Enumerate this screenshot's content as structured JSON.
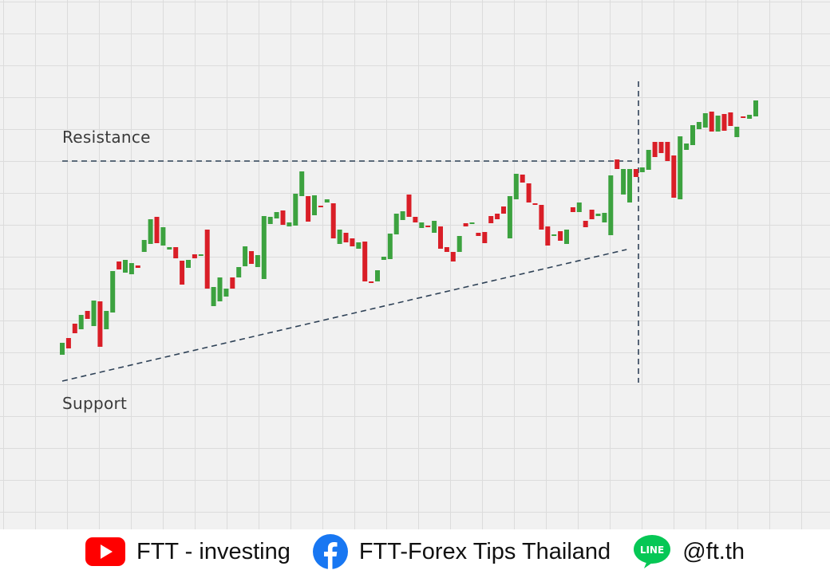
{
  "chart_data": {
    "type": "candlestick",
    "title": "",
    "xlabel": "",
    "ylabel": "",
    "grid": true,
    "annotations": [
      {
        "text": "Resistance",
        "kind": "horizontal-dashed-line",
        "level": 202
      },
      {
        "text": "Support",
        "kind": "rising-dashed-trendline",
        "from": [
          0,
          478
        ],
        "to": [
          88,
          313
        ]
      },
      {
        "text": "",
        "kind": "vertical-dashed-line",
        "at_index": 90
      }
    ],
    "axes_range": {
      "x": [
        0,
        111
      ],
      "y_screen_ref": [
        100,
        480
      ]
    },
    "candles": [
      [
        445,
        430,
        455,
        425
      ],
      [
        424,
        437,
        445,
        418
      ],
      [
        406,
        418,
        421,
        397
      ],
      [
        413,
        395,
        421,
        380
      ],
      [
        390,
        400,
        411,
        382
      ],
      [
        409,
        377,
        412,
        362
      ],
      [
        378,
        435,
        446,
        365
      ],
      [
        413,
        390,
        419,
        376
      ],
      [
        392,
        340,
        396,
        335
      ],
      [
        328,
        338,
        343,
        318
      ],
      [
        342,
        326,
        350,
        320
      ],
      [
        344,
        330,
        348,
        323
      ],
      [
        333,
        336,
        344,
        326
      ],
      [
        316,
        301,
        331,
        300
      ],
      [
        306,
        275,
        313,
        262
      ],
      [
        272,
        305,
        312,
        254
      ],
      [
        308,
        285,
        344,
        269
      ],
      [
        313,
        310,
        324,
        306
      ],
      [
        310,
        324,
        339,
        301
      ],
      [
        327,
        357,
        360,
        326
      ],
      [
        336,
        326,
        342,
        323
      ],
      [
        319,
        324,
        327,
        313
      ],
      [
        321,
        319,
        324,
        306
      ],
      [
        288,
        362,
        371,
        282
      ],
      [
        384,
        360,
        390,
        361
      ],
      [
        378,
        348,
        386,
        330
      ],
      [
        372,
        362,
        378,
        342
      ],
      [
        348,
        362,
        369,
        342
      ],
      [
        348,
        335,
        359,
        322
      ],
      [
        334,
        309,
        343,
        304
      ],
      [
        315,
        331,
        336,
        310
      ],
      [
        335,
        320,
        337,
        296
      ],
      [
        350,
        271,
        356,
        262
      ],
      [
        281,
        272,
        287,
        262
      ],
      [
        274,
        266,
        279,
        260
      ],
      [
        264,
        282,
        289,
        260
      ],
      [
        284,
        279,
        289,
        252
      ],
      [
        283,
        243,
        293,
        238
      ],
      [
        246,
        215,
        253,
        209
      ],
      [
        246,
        278,
        280,
        233
      ],
      [
        270,
        245,
        273,
        243
      ],
      [
        258,
        258,
        267,
        251
      ],
      [
        254,
        250,
        259,
        249
      ],
      [
        255,
        299,
        309,
        245
      ],
      [
        306,
        288,
        314,
        286
      ],
      [
        292,
        304,
        311,
        286
      ],
      [
        299,
        309,
        316,
        291
      ],
      [
        312,
        304,
        323,
        301
      ],
      [
        303,
        353,
        364,
        293
      ],
      [
        353,
        354,
        356,
        337
      ],
      [
        353,
        339,
        354,
        344
      ],
      [
        326,
        322,
        339,
        309
      ],
      [
        325,
        293,
        332,
        283
      ],
      [
        294,
        268,
        302,
        266
      ],
      [
        276,
        265,
        280,
        260
      ],
      [
        244,
        272,
        272,
        233
      ],
      [
        272,
        279,
        282,
        267
      ],
      [
        286,
        279,
        292,
        276
      ],
      [
        283,
        285,
        297,
        272
      ],
      [
        292,
        277,
        298,
        272
      ],
      [
        284,
        312,
        315,
        276
      ],
      [
        310,
        316,
        324,
        282
      ],
      [
        316,
        328,
        333,
        280
      ],
      [
        316,
        296,
        324,
        284
      ],
      [
        280,
        284,
        303,
        276
      ],
      [
        280,
        279,
        293,
        269
      ],
      [
        292,
        296,
        309,
        264
      ],
      [
        291,
        305,
        312,
        285
      ],
      [
        271,
        280,
        280,
        255
      ],
      [
        268,
        275,
        279,
        265
      ],
      [
        259,
        268,
        270,
        251
      ],
      [
        299,
        246,
        303,
        234
      ],
      [
        250,
        218,
        251,
        216
      ],
      [
        219,
        229,
        232,
        218
      ],
      [
        230,
        254,
        257,
        218
      ],
      [
        255,
        255,
        261,
        251
      ],
      [
        257,
        288,
        291,
        254
      ],
      [
        284,
        308,
        319,
        281
      ],
      [
        296,
        294,
        303,
        277
      ],
      [
        290,
        302,
        307,
        277
      ],
      [
        306,
        288,
        307,
        277
      ],
      [
        260,
        266,
        274,
        249
      ],
      [
        266,
        254,
        266,
        240
      ],
      [
        277,
        285,
        308,
        247
      ],
      [
        263,
        275,
        278,
        254
      ],
      [
        271,
        268,
        276,
        263
      ],
      [
        279,
        267,
        282,
        262
      ],
      [
        295,
        220,
        308,
        208
      ],
      [
        200,
        212,
        214,
        202
      ],
      [
        244,
        212,
        250,
        208
      ],
      [
        254,
        212,
        243,
        209
      ],
      [
        212,
        222,
        250,
        196
      ],
      [
        216,
        210,
        227,
        194
      ],
      [
        213,
        188,
        213,
        158
      ],
      [
        178,
        197,
        208,
        167
      ],
      [
        178,
        192,
        197,
        174
      ],
      [
        178,
        202,
        247,
        171
      ],
      [
        195,
        248,
        255,
        187
      ],
      [
        250,
        171,
        255,
        166
      ],
      [
        188,
        180,
        181,
        173
      ],
      [
        182,
        157,
        185,
        155
      ],
      [
        162,
        153,
        177,
        148
      ],
      [
        160,
        142,
        168,
        139
      ],
      [
        140,
        165,
        168,
        122
      ],
      [
        165,
        145,
        183,
        117
      ],
      [
        143,
        164,
        185,
        135
      ],
      [
        141,
        158,
        164,
        138
      ],
      [
        172,
        159,
        172,
        140
      ],
      [
        146,
        148,
        168,
        141
      ],
      [
        149,
        144,
        168,
        123
      ],
      [
        146,
        126,
        172,
        112
      ]
    ]
  },
  "footer": {
    "youtube_text": "FTT - investing",
    "facebook_text": "FTT-Forex Tips Thailand",
    "line_text": "@ft.th",
    "line_badge": "LINE",
    "icons": [
      "youtube-icon",
      "facebook-icon",
      "line-icon"
    ],
    "colors": {
      "youtube": "#ff0000",
      "facebook": "#1877f2",
      "line": "#06c755",
      "up": "#3ca23f",
      "down": "#d91e27",
      "lines": "#2f4257"
    }
  }
}
